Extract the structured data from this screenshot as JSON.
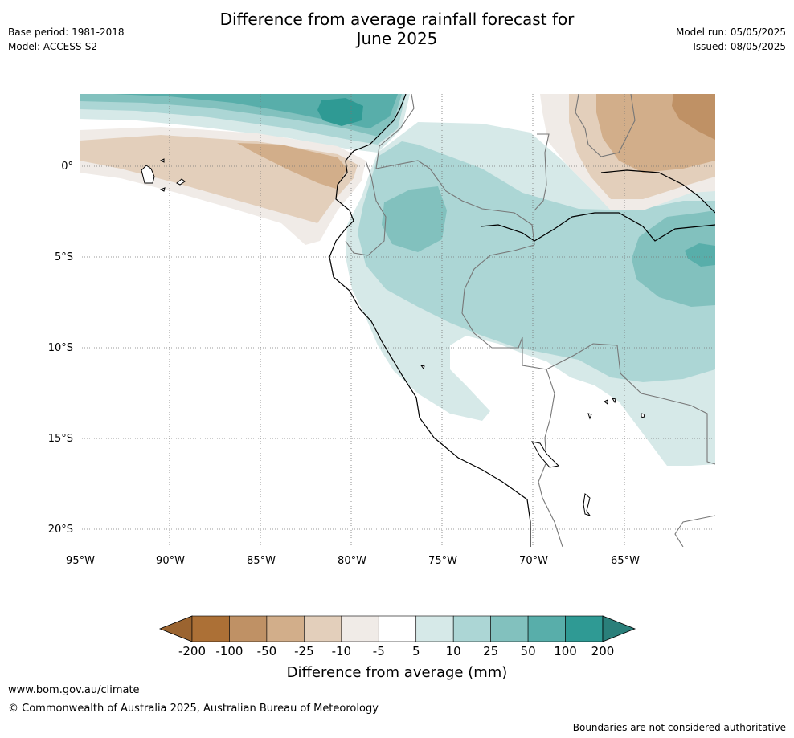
{
  "header": {
    "title_line1": "Difference from average rainfall forecast for",
    "title_line2": "June 2025",
    "base_period": "Base period: 1981-2018",
    "model": "Model: ACCESS-S2",
    "model_run": "Model run: 05/05/2025",
    "issued": "Issued: 08/05/2025"
  },
  "map": {
    "longitude_labels": [
      "95°W",
      "90°W",
      "85°W",
      "80°W",
      "75°W",
      "70°W",
      "65°W"
    ],
    "latitude_labels": [
      "0°",
      "5°S",
      "10°S",
      "15°S",
      "20°S"
    ]
  },
  "legend": {
    "title": "Difference from average (mm)",
    "tick_labels": [
      "-200",
      "-100",
      "-50",
      "-25",
      "-10",
      "-5",
      "5",
      "10",
      "25",
      "50",
      "100",
      "200"
    ],
    "colors": [
      "#ac7036",
      "#bf9165",
      "#d2ae8a",
      "#e3cfbb",
      "#f0ebe7",
      "#ffffff",
      "#d6e9e8",
      "#acd6d5",
      "#82c1be",
      "#58aeaa",
      "#2f9a94"
    ],
    "extend_low_color": "#9b6430",
    "extend_high_color": "#2a7f7a"
  },
  "footer": {
    "url": "www.bom.gov.au/climate",
    "copyright": "© Commonwealth of Australia 2025, Australian Bureau of Meteorology",
    "note": "Boundaries are not considered authoritative"
  }
}
